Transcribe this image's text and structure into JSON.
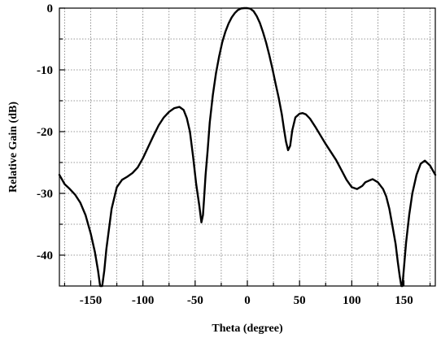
{
  "chart_data": {
    "type": "line",
    "title": "",
    "xlabel": "Theta (degree)",
    "ylabel": "Relative Gain (dB)",
    "xlim": [
      -180,
      180
    ],
    "ylim": [
      -45,
      0
    ],
    "x_ticks": [
      -150,
      -100,
      -50,
      0,
      50,
      100,
      150
    ],
    "x_tick_labels": [
      "-150",
      "-100",
      "-50",
      "0",
      "50",
      "100",
      "150"
    ],
    "x_minor_grid": [
      -175,
      -125,
      -75,
      -25,
      25,
      75,
      125,
      175
    ],
    "y_ticks": [
      0,
      -10,
      -20,
      -30,
      -40
    ],
    "y_tick_labels": [
      "0",
      "-10",
      "-20",
      "-30",
      "-40"
    ],
    "y_minor_grid": [
      -5,
      -15,
      -25,
      -35
    ],
    "grid": true,
    "legend": "none",
    "series": [
      {
        "color": "#000000",
        "x": [
          -180,
          -175,
          -170,
          -165,
          -160,
          -155,
          -150,
          -146,
          -143,
          -141,
          -139,
          -137,
          -135,
          -130,
          -125,
          -120,
          -115,
          -110,
          -105,
          -100,
          -95,
          -90,
          -85,
          -80,
          -75,
          -70,
          -65,
          -61,
          -58,
          -55,
          -52,
          -49,
          -46,
          -44,
          -42.5,
          -41.5,
          -40,
          -38,
          -36,
          -33,
          -30,
          -27,
          -24,
          -21,
          -18,
          -15,
          -12,
          -9,
          -6,
          -3,
          0,
          3,
          6,
          9,
          12,
          15,
          18,
          21,
          24,
          27,
          30,
          33,
          35,
          37,
          39,
          41,
          43,
          46,
          50,
          53,
          56,
          60,
          65,
          70,
          75,
          80,
          85,
          90,
          95,
          100,
          105,
          110,
          113,
          117,
          120,
          125,
          130,
          133,
          136,
          139,
          142,
          144,
          146,
          147.5,
          148.5,
          150,
          152,
          155,
          158,
          162,
          166,
          170,
          175,
          180
        ],
        "y": [
          -27,
          -28.5,
          -29.3,
          -30.2,
          -31.5,
          -33.5,
          -36.5,
          -39.5,
          -42.5,
          -45,
          -45,
          -42.5,
          -39,
          -32.5,
          -29,
          -27.8,
          -27.3,
          -26.7,
          -25.8,
          -24.3,
          -22.5,
          -20.7,
          -19,
          -17.7,
          -16.8,
          -16.2,
          -16,
          -16.5,
          -17.8,
          -20,
          -24,
          -28.5,
          -32,
          -34.7,
          -33.5,
          -31,
          -27,
          -23,
          -18.5,
          -14,
          -10.5,
          -7.8,
          -5.5,
          -3.8,
          -2.5,
          -1.5,
          -0.8,
          -0.3,
          -0.05,
          0,
          0,
          -0.1,
          -0.5,
          -1.3,
          -2.4,
          -3.9,
          -5.6,
          -7.6,
          -9.8,
          -12.2,
          -14.5,
          -17.2,
          -19.5,
          -21.6,
          -23,
          -22.3,
          -19.8,
          -17.7,
          -17.1,
          -17,
          -17.2,
          -17.9,
          -19.2,
          -20.6,
          -22,
          -23.3,
          -24.6,
          -26.2,
          -27.8,
          -29,
          -29.3,
          -28.8,
          -28.2,
          -27.9,
          -27.7,
          -28.2,
          -29.3,
          -30.5,
          -32.5,
          -35.3,
          -38.2,
          -41,
          -43.5,
          -45,
          -45,
          -42,
          -38,
          -33.5,
          -30,
          -27,
          -25.2,
          -24.7,
          -25.5,
          -27
        ]
      }
    ]
  }
}
